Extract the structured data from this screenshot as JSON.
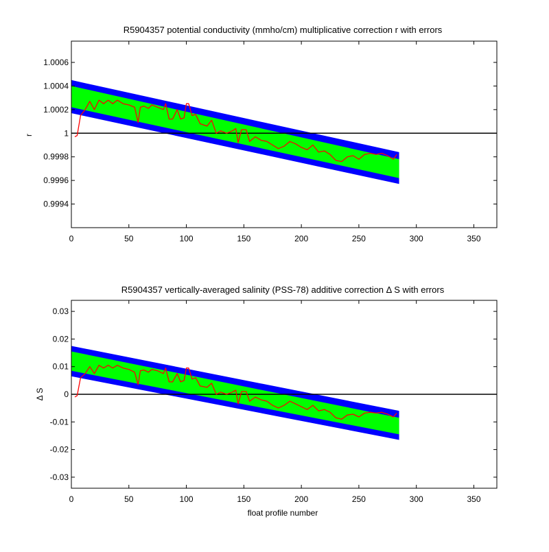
{
  "chart_data": [
    {
      "type": "line",
      "title": "R5904357 potential conductivity (mmho/cm) multiplicative correction r with errors",
      "xlabel": "",
      "ylabel": "r",
      "xlim": [
        0,
        370
      ],
      "ylim": [
        0.9992,
        1.00078
      ],
      "xticks": [
        0,
        50,
        100,
        150,
        200,
        250,
        300,
        350
      ],
      "xtick_labels": [
        "0",
        "50",
        "100",
        "150",
        "200",
        "250",
        "300",
        "350"
      ],
      "yticks": [
        0.9994,
        0.9996,
        0.9998,
        1.0,
        1.0002,
        1.0004,
        1.0006
      ],
      "ytick_labels": [
        "0.9994",
        "0.9996",
        "0.9998",
        "1",
        "1.0002",
        "1.0004",
        "1.0006"
      ],
      "reference_line": 1.0,
      "grid": false,
      "bands": [
        {
          "role": "outer-error",
          "color": "#0000ff",
          "x": [
            0,
            285
          ],
          "lower": [
            1.00017,
            0.99957
          ],
          "upper": [
            1.00045,
            0.99984
          ]
        },
        {
          "role": "inner-error",
          "color": "#00ff00",
          "x": [
            0,
            285
          ],
          "lower": [
            1.00022,
            0.99962
          ],
          "upper": [
            1.0004,
            0.99978
          ]
        }
      ],
      "series": [
        {
          "color": "#ff0000",
          "x": [
            3,
            5,
            8,
            12,
            16,
            20,
            24,
            28,
            32,
            36,
            40,
            45,
            50,
            55,
            58,
            60,
            63,
            67,
            70,
            75,
            80,
            82,
            85,
            88,
            92,
            95,
            98,
            100,
            102,
            105,
            108,
            112,
            118,
            122,
            126,
            130,
            135,
            140,
            143,
            145,
            148,
            152,
            155,
            160,
            165,
            170,
            175,
            180,
            185,
            190,
            195,
            200,
            205,
            210,
            215,
            220,
            225,
            230,
            235,
            240,
            245,
            250,
            255,
            260,
            265,
            270,
            275,
            280,
            283
          ],
          "values": [
            0.99997,
            0.99998,
            1.00015,
            1.0002,
            1.00027,
            1.0002,
            1.00028,
            1.00025,
            1.00028,
            1.00025,
            1.00028,
            1.00025,
            1.00024,
            1.00022,
            1.00009,
            1.00022,
            1.00023,
            1.00021,
            1.00024,
            1.00022,
            1.0002,
            1.00025,
            1.00012,
            1.00012,
            1.0002,
            1.00012,
            1.00013,
            1.00025,
            1.00025,
            1.00015,
            1.00016,
            1.00008,
            1.00006,
            1.00011,
            1.0,
            1.00002,
            1.0,
            1.00002,
            1.00004,
            0.99992,
            1.00003,
            1.00003,
            0.99993,
            0.99997,
            0.99994,
            0.99993,
            0.9999,
            0.99987,
            0.99989,
            0.99993,
            0.99991,
            0.99988,
            0.99986,
            0.9999,
            0.99984,
            0.99985,
            0.99982,
            0.99977,
            0.99976,
            0.9998,
            0.99981,
            0.99978,
            0.99982,
            0.99983,
            0.99982,
            0.99983,
            0.99981,
            0.99978,
            0.99982
          ]
        }
      ]
    },
    {
      "type": "line",
      "title": "R5904357 vertically-averaged salinity (PSS-78) additive correction Δ S with errors",
      "xlabel": "float profile number",
      "ylabel": "Δ S",
      "xlim": [
        0,
        370
      ],
      "ylim": [
        -0.034,
        0.034
      ],
      "xticks": [
        0,
        50,
        100,
        150,
        200,
        250,
        300,
        350
      ],
      "xtick_labels": [
        "0",
        "50",
        "100",
        "150",
        "200",
        "250",
        "300",
        "350"
      ],
      "yticks": [
        -0.03,
        -0.02,
        -0.01,
        0,
        0.01,
        0.02,
        0.03
      ],
      "ytick_labels": [
        "-0.03",
        "-0.02",
        "-0.01",
        "0",
        "0.01",
        "0.02",
        "0.03"
      ],
      "reference_line": 0,
      "grid": false,
      "bands": [
        {
          "role": "outer-error",
          "color": "#0000ff",
          "x": [
            0,
            285
          ],
          "lower": [
            0.0065,
            -0.0165
          ],
          "upper": [
            0.0175,
            -0.006
          ]
        },
        {
          "role": "inner-error",
          "color": "#00ff00",
          "x": [
            0,
            285
          ],
          "lower": [
            0.0085,
            -0.0145
          ],
          "upper": [
            0.0155,
            -0.0085
          ]
        }
      ],
      "series": [
        {
          "color": "#ff0000",
          "x": [
            3,
            5,
            8,
            12,
            16,
            20,
            24,
            28,
            32,
            36,
            40,
            45,
            50,
            55,
            58,
            60,
            63,
            67,
            70,
            75,
            80,
            82,
            85,
            88,
            92,
            95,
            98,
            100,
            102,
            105,
            108,
            112,
            118,
            122,
            126,
            130,
            135,
            140,
            143,
            145,
            148,
            152,
            155,
            160,
            165,
            170,
            175,
            180,
            185,
            190,
            195,
            200,
            205,
            210,
            215,
            220,
            225,
            230,
            235,
            240,
            245,
            250,
            255,
            260,
            265,
            270,
            275,
            280,
            283
          ],
          "values": [
            -0.001,
            -0.0005,
            0.006,
            0.0075,
            0.01,
            0.0075,
            0.0105,
            0.0095,
            0.0105,
            0.0095,
            0.0105,
            0.0095,
            0.009,
            0.008,
            0.0035,
            0.0085,
            0.0088,
            0.008,
            0.009,
            0.0085,
            0.0075,
            0.0095,
            0.0045,
            0.0045,
            0.0075,
            0.0045,
            0.005,
            0.0095,
            0.0095,
            0.0055,
            0.006,
            0.003,
            0.0025,
            0.004,
            0.0,
            0.0008,
            0.0,
            0.0008,
            0.0015,
            -0.0035,
            0.001,
            0.001,
            -0.0025,
            -0.001,
            -0.002,
            -0.0025,
            -0.004,
            -0.005,
            -0.004,
            -0.0025,
            -0.0035,
            -0.0045,
            -0.0055,
            -0.004,
            -0.006,
            -0.0055,
            -0.0065,
            -0.0085,
            -0.009,
            -0.0075,
            -0.0072,
            -0.0082,
            -0.0068,
            -0.0065,
            -0.0068,
            -0.0065,
            -0.0072,
            -0.0082,
            -0.0068
          ]
        }
      ]
    }
  ]
}
